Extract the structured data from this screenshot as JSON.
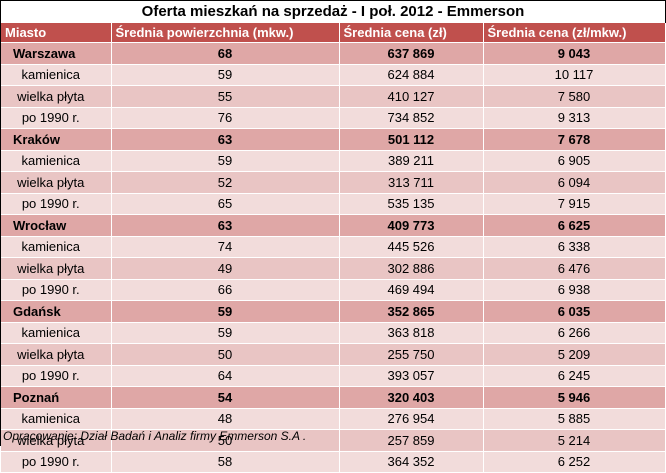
{
  "title": "Oferta mieszkań na sprzedaż - I poł. 2012 - Emmerson",
  "headers": [
    "Miasto",
    "Średnia powierzchnia (mkw.)",
    "Średnia cena (zł)",
    "Średnia cena (zł/mkw.)"
  ],
  "rows": [
    {
      "type": "city",
      "label": "Warszawa",
      "area": "68",
      "price": "637 869",
      "ppsm": "9 043"
    },
    {
      "type": "sub",
      "label": "kamienica",
      "area": "59",
      "price": "624 884",
      "ppsm": "10 117"
    },
    {
      "type": "sub",
      "label": "wielka płyta",
      "area": "55",
      "price": "410 127",
      "ppsm": "7 580"
    },
    {
      "type": "sub",
      "label": "po 1990 r.",
      "area": "76",
      "price": "734 852",
      "ppsm": "9 313"
    },
    {
      "type": "city",
      "label": "Kraków",
      "area": "63",
      "price": "501 112",
      "ppsm": "7 678"
    },
    {
      "type": "sub",
      "label": "kamienica",
      "area": "59",
      "price": "389 211",
      "ppsm": "6 905"
    },
    {
      "type": "sub",
      "label": "wielka płyta",
      "area": "52",
      "price": "313 711",
      "ppsm": "6 094"
    },
    {
      "type": "sub",
      "label": "po 1990 r.",
      "area": "65",
      "price": "535 135",
      "ppsm": "7 915"
    },
    {
      "type": "city",
      "label": "Wrocław",
      "area": "63",
      "price": "409 773",
      "ppsm": "6 625"
    },
    {
      "type": "sub",
      "label": "kamienica",
      "area": "74",
      "price": "445 526",
      "ppsm": "6 338"
    },
    {
      "type": "sub",
      "label": "wielka płyta",
      "area": "49",
      "price": "302 886",
      "ppsm": "6 476"
    },
    {
      "type": "sub",
      "label": "po 1990 r.",
      "area": "66",
      "price": "469 494",
      "ppsm": "6 938"
    },
    {
      "type": "city",
      "label": "Gdańsk",
      "area": "59",
      "price": "352 865",
      "ppsm": "6 035"
    },
    {
      "type": "sub",
      "label": "kamienica",
      "area": "59",
      "price": "363 818",
      "ppsm": "6 266"
    },
    {
      "type": "sub",
      "label": "wielka płyta",
      "area": "50",
      "price": "255 750",
      "ppsm": "5 209"
    },
    {
      "type": "sub",
      "label": "po 1990 r.",
      "area": "64",
      "price": "393 057",
      "ppsm": "6 245"
    },
    {
      "type": "city",
      "label": "Poznań",
      "area": "54",
      "price": "320 403",
      "ppsm": "5 946"
    },
    {
      "type": "sub",
      "label": "kamienica",
      "area": "48",
      "price": "276 954",
      "ppsm": "5 885"
    },
    {
      "type": "sub",
      "label": "wielka płyta",
      "area": "50",
      "price": "257 859",
      "ppsm": "5 214"
    },
    {
      "type": "sub",
      "label": "po 1990 r.",
      "area": "58",
      "price": "364 352",
      "ppsm": "6 252"
    }
  ],
  "footer": "Opracowanie: Dział Badań i Analiz firmy Emmerson S.A .",
  "colors": {
    "header_bg": "#c0504d",
    "city_row_bg": "#dfa7a6",
    "sub_row_light": "#f2dcdb",
    "sub_row_dark": "#e9c5c4"
  }
}
